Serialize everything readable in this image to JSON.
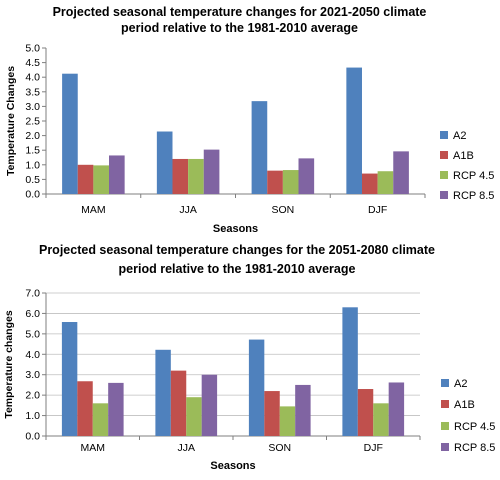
{
  "chart_data": [
    {
      "type": "bar",
      "title": "Projected seasonal temperature changes for 2021-2050 climate period relative to the 1981-2010 average",
      "title_lines": [
        "Projected seasonal temperature changes for 2021-2050 climate",
        "period relative to the 1981-2010 average"
      ],
      "xlabel": "Seasons",
      "ylabel": "Temperature Changes",
      "categories": [
        "MAM",
        "JJA",
        "SON",
        "DJF"
      ],
      "ylim": [
        0,
        5.0
      ],
      "ytick_step": 0.5,
      "ytick_labels": [
        "0.0",
        "0.5",
        "1.0",
        "1.5",
        "2.0",
        "2.5",
        "3.0",
        "3.5",
        "4.0",
        "4.5",
        "5.0"
      ],
      "grid": false,
      "legend_position": "right",
      "series": [
        {
          "name": "A2",
          "color": "#4F81BD",
          "values": [
            4.12,
            2.14,
            3.18,
            4.33
          ]
        },
        {
          "name": "A1B",
          "color": "#C0504D",
          "values": [
            1.0,
            1.2,
            0.8,
            0.7
          ]
        },
        {
          "name": "RCP 4.5",
          "color": "#9BBB59",
          "values": [
            0.98,
            1.2,
            0.82,
            0.78
          ]
        },
        {
          "name": "RCP 8.5",
          "color": "#8064A2",
          "values": [
            1.32,
            1.52,
            1.22,
            1.46
          ]
        }
      ]
    },
    {
      "type": "bar",
      "title": "Projected seasonal temperature changes for the 2051-2080 climate period relative to the 1981-2010 average",
      "title_lines": [
        "Projected seasonal temperature changes for the 2051-2080 climate",
        "period relative to the 1981-2010 average"
      ],
      "xlabel": "Seasons",
      "ylabel": "Temperature changes",
      "categories": [
        "MAM",
        "JJA",
        "SON",
        "DJF"
      ],
      "ylim": [
        0,
        7.0
      ],
      "ytick_step": 1.0,
      "ytick_labels": [
        "0.0",
        "1.0",
        "2.0",
        "3.0",
        "4.0",
        "5.0",
        "6.0",
        "7.0"
      ],
      "grid": true,
      "legend_position": "right",
      "series": [
        {
          "name": "A2",
          "color": "#4F81BD",
          "values": [
            5.58,
            4.22,
            4.72,
            6.3
          ]
        },
        {
          "name": "A1B",
          "color": "#C0504D",
          "values": [
            2.68,
            3.2,
            2.2,
            2.3
          ]
        },
        {
          "name": "RCP 4.5",
          "color": "#9BBB59",
          "values": [
            1.6,
            1.9,
            1.45,
            1.6
          ]
        },
        {
          "name": "RCP 8.5",
          "color": "#8064A2",
          "values": [
            2.6,
            3.0,
            2.5,
            2.62
          ]
        }
      ]
    }
  ]
}
